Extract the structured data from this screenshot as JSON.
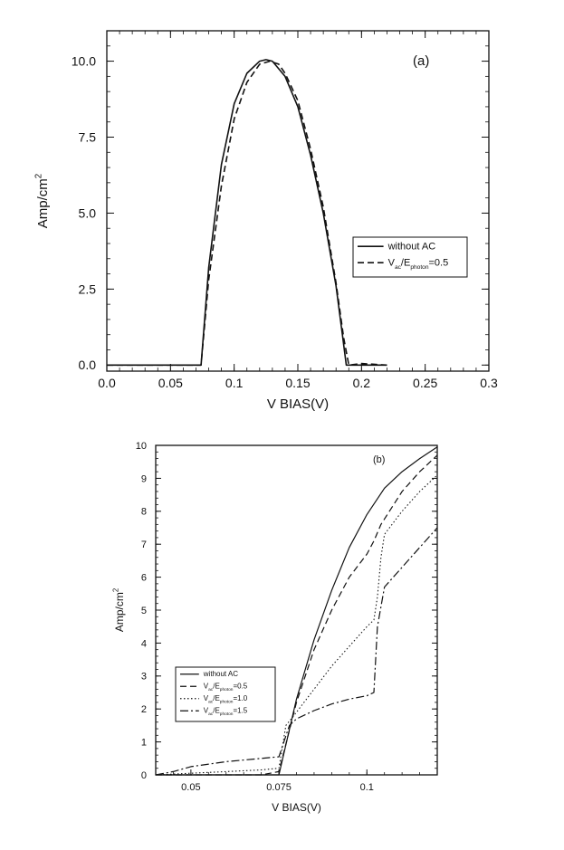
{
  "chart_data": [
    {
      "type": "line",
      "panel_label": "(a)",
      "xlabel": "V BIAS(V)",
      "ylabel": "Amp/cm",
      "ylabel_sup": "2",
      "xlim": [
        0.0,
        0.3
      ],
      "ylim": [
        -0.2,
        11.0
      ],
      "xticks": [
        "0.0",
        "0.05",
        "0.1",
        "0.15",
        "0.2",
        "0.25",
        "0.3"
      ],
      "xtick_values": [
        0.0,
        0.05,
        0.1,
        0.15,
        0.2,
        0.25,
        0.3
      ],
      "yticks": [
        "0.0",
        "2.5",
        "5.0",
        "7.5",
        "10.0"
      ],
      "ytick_values": [
        0.0,
        2.5,
        5.0,
        7.5,
        10.0
      ],
      "legend_position": "right",
      "series": [
        {
          "name": "without AC",
          "style": "solid",
          "x": [
            0.0,
            0.06,
            0.074,
            0.08,
            0.09,
            0.1,
            0.11,
            0.12,
            0.125,
            0.13,
            0.14,
            0.15,
            0.16,
            0.17,
            0.18,
            0.185,
            0.188,
            0.2,
            0.22
          ],
          "y": [
            0.0,
            0.0,
            0.0,
            3.2,
            6.6,
            8.6,
            9.6,
            10.0,
            10.05,
            10.0,
            9.5,
            8.5,
            6.9,
            5.0,
            2.6,
            1.0,
            0.0,
            0.0,
            0.0
          ]
        },
        {
          "name": "V_ac/E_photon=0.5",
          "legend_main": "V",
          "legend_sub1": "ac",
          "legend_mid": "/E",
          "legend_sub2": "photon",
          "legend_tail": "=0.5",
          "style": "dashed",
          "x": [
            0.0,
            0.06,
            0.074,
            0.08,
            0.09,
            0.1,
            0.11,
            0.12,
            0.128,
            0.135,
            0.14,
            0.15,
            0.16,
            0.17,
            0.18,
            0.186,
            0.19,
            0.2,
            0.22
          ],
          "y": [
            0.0,
            0.0,
            0.0,
            2.8,
            5.9,
            8.1,
            9.3,
            9.9,
            10.0,
            9.9,
            9.6,
            8.7,
            7.1,
            5.2,
            2.7,
            0.9,
            0.0,
            0.05,
            0.0
          ]
        }
      ]
    },
    {
      "type": "line",
      "panel_label": "(b)",
      "xlabel": "V BIAS(V)",
      "ylabel": "Amp/cm",
      "ylabel_sup": "2",
      "xlim": [
        0.04,
        0.12
      ],
      "ylim": [
        0,
        10
      ],
      "xticks": [
        "0.05",
        "0.075",
        "0.1"
      ],
      "xtick_values": [
        0.05,
        0.075,
        0.1
      ],
      "yticks": [
        "0",
        "1",
        "2",
        "3",
        "4",
        "5",
        "6",
        "7",
        "8",
        "9",
        "10"
      ],
      "ytick_values": [
        0,
        1,
        2,
        3,
        4,
        5,
        6,
        7,
        8,
        9,
        10
      ],
      "legend_position": "bottom-left",
      "series": [
        {
          "name": "without AC",
          "style": "solid",
          "x": [
            0.04,
            0.074,
            0.075,
            0.08,
            0.085,
            0.09,
            0.095,
            0.1,
            0.105,
            0.11,
            0.115,
            0.12
          ],
          "y": [
            0.0,
            0.0,
            0.0,
            2.3,
            4.1,
            5.6,
            6.9,
            7.9,
            8.7,
            9.2,
            9.6,
            9.95
          ]
        },
        {
          "name": "V_ac/E_photon=0.5",
          "legend_main": "V",
          "legend_sub1": "ac",
          "legend_mid": "/E",
          "legend_sub2": "photon",
          "legend_tail": "=0.5",
          "style": "dashed",
          "x": [
            0.04,
            0.07,
            0.075,
            0.08,
            0.085,
            0.09,
            0.095,
            0.1,
            0.102,
            0.104,
            0.11,
            0.115,
            0.12
          ],
          "y": [
            0.0,
            0.0,
            0.1,
            2.2,
            3.8,
            5.0,
            6.0,
            6.7,
            7.1,
            7.6,
            8.6,
            9.2,
            9.7
          ]
        },
        {
          "name": "V_ac/E_photon=1.0",
          "legend_main": "V",
          "legend_sub1": "ac",
          "legend_mid": "/E",
          "legend_sub2": "photon",
          "legend_tail": "=1.0",
          "style": "dotted",
          "x": [
            0.04,
            0.05,
            0.06,
            0.07,
            0.075,
            0.077,
            0.08,
            0.085,
            0.09,
            0.095,
            0.1,
            0.102,
            0.103,
            0.104,
            0.105,
            0.11,
            0.115,
            0.12
          ],
          "y": [
            0.0,
            0.05,
            0.1,
            0.15,
            0.2,
            1.5,
            1.9,
            2.6,
            3.3,
            3.9,
            4.5,
            4.7,
            5.4,
            6.6,
            7.3,
            8.0,
            8.6,
            9.1
          ]
        },
        {
          "name": "V_ac/E_photon=1.5",
          "legend_main": "V",
          "legend_sub1": "ac",
          "legend_mid": "/E",
          "legend_sub2": "photon",
          "legend_tail": "=1.5",
          "style": "dashdot",
          "x": [
            0.04,
            0.045,
            0.05,
            0.06,
            0.07,
            0.075,
            0.078,
            0.08,
            0.085,
            0.09,
            0.095,
            0.1,
            0.102,
            0.103,
            0.105,
            0.11,
            0.115,
            0.12
          ],
          "y": [
            0.0,
            0.1,
            0.25,
            0.4,
            0.5,
            0.55,
            1.5,
            1.7,
            1.95,
            2.15,
            2.3,
            2.4,
            2.5,
            4.5,
            5.7,
            6.3,
            6.9,
            7.5
          ]
        }
      ]
    }
  ]
}
